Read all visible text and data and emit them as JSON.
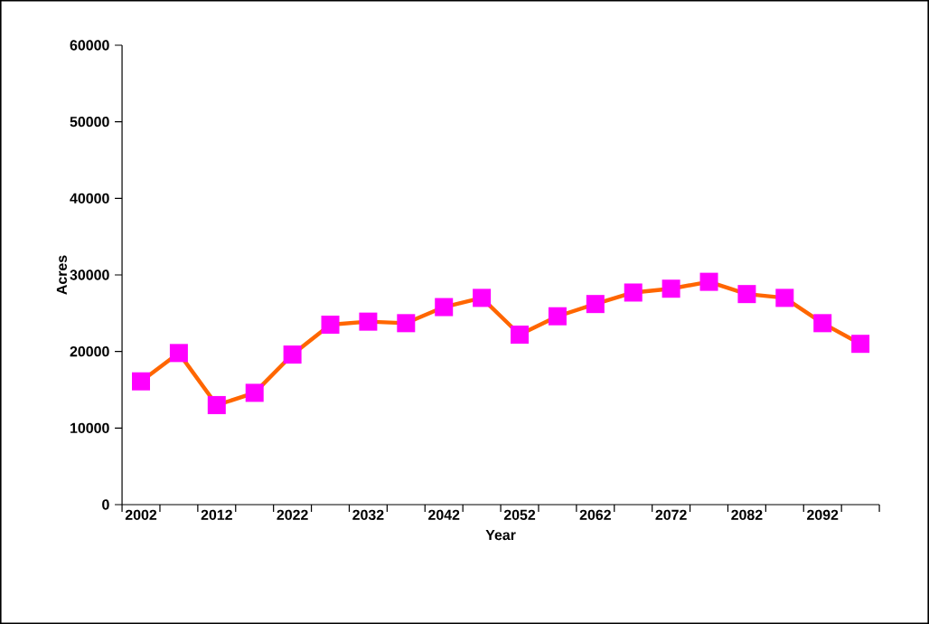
{
  "chart_data": {
    "type": "line",
    "xlabel": "Year",
    "ylabel": "Acres",
    "categories": [
      "2002",
      null,
      "2012",
      null,
      "2022",
      null,
      "2032",
      null,
      "2042",
      null,
      "2052",
      null,
      "2062",
      null,
      "2072",
      null,
      "2082",
      null,
      "2092",
      null
    ],
    "series": [
      {
        "color": "#ff6600",
        "colors": [
          "#ff00ff",
          "#ff00ff",
          "#ff00ff",
          "#ff00ff",
          "#ff00ff",
          "#ff00ff",
          "#ff00ff",
          "#ff00ff",
          "#ff00ff",
          "#ff00ff",
          "#ff00ff",
          "#ff00ff",
          "#ff00ff",
          "#ff00ff",
          "#ff00ff",
          "#ff00ff",
          "#ff00ff",
          "#ff00ff",
          "#ff00ff",
          "#ff00ff"
        ],
        "values": [
          16100,
          19800,
          13000,
          14600,
          19600,
          23500,
          23900,
          23700,
          25800,
          27000,
          22200,
          24600,
          26200,
          27700,
          28200,
          29100,
          27500,
          27000,
          23700,
          21000
        ]
      }
    ],
    "ylim": [
      0,
      60000
    ],
    "yticks": [
      0,
      10000,
      20000,
      30000,
      40000,
      50000,
      60000
    ],
    "grid": false,
    "marker": "square",
    "line_style": "solid"
  }
}
